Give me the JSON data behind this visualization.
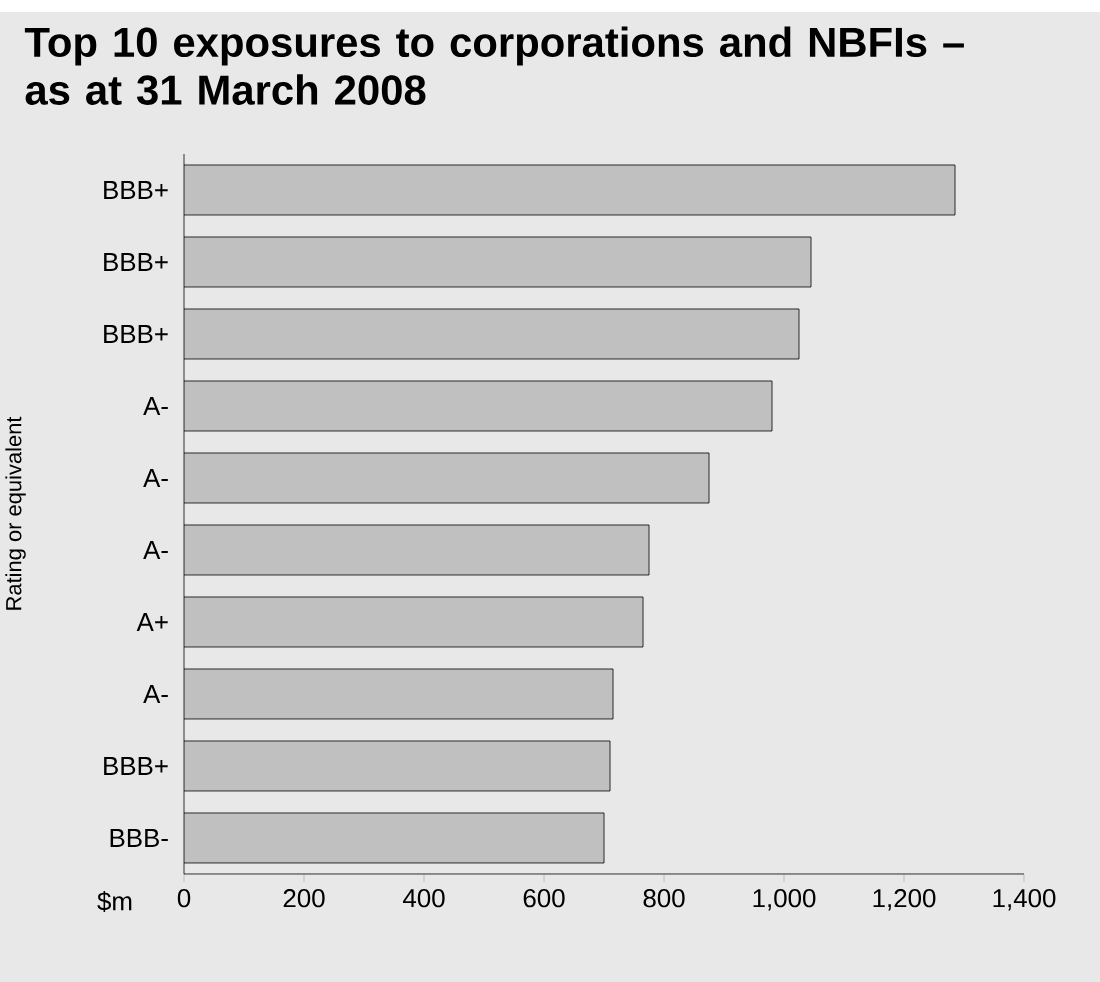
{
  "chart_data": {
    "type": "bar",
    "orientation": "horizontal",
    "title": "Top 10 exposures to corporations and NBFIs – as at 31 March 2008",
    "xlabel": "$m",
    "ylabel": "Rating or equivalent",
    "categories": [
      "BBB+",
      "BBB+",
      "BBB+",
      "A-",
      "A-",
      "A-",
      "A+",
      "A-",
      "BBB+",
      "BBB-"
    ],
    "values": [
      1285,
      1045,
      1025,
      980,
      875,
      775,
      765,
      715,
      710,
      700
    ],
    "color": "#c0c0c0",
    "xlim": [
      0,
      1400
    ],
    "xticks": [
      0,
      200,
      400,
      600,
      800,
      {
        "value": 1000,
        "label": "1,000"
      },
      {
        "value": 1200,
        "label": "1,200"
      },
      {
        "value": 1400,
        "label": "1,400"
      }
    ],
    "grid": false
  }
}
